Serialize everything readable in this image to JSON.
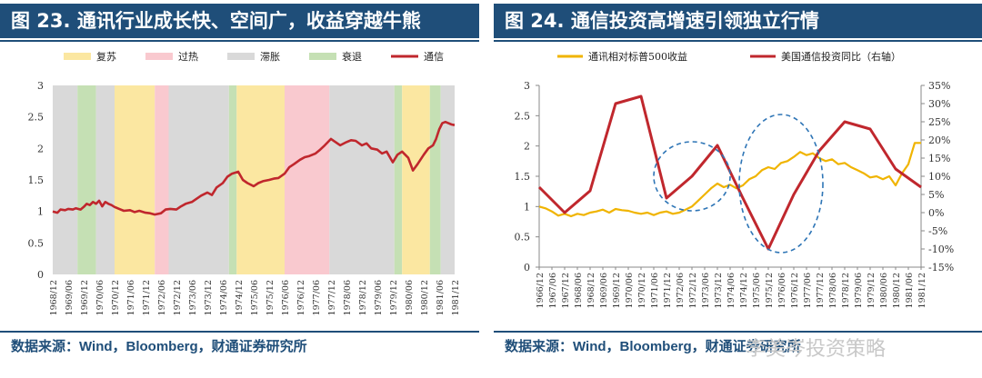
{
  "left": {
    "title": "图 23. 通讯行业成长快、空间广，收益穿越牛熊",
    "source": "数据来源：Wind，Bloomberg，财通证券研究所",
    "chart_data": {
      "type": "line",
      "title": "",
      "ylim": [
        0,
        3
      ],
      "yticks": [
        "0",
        "0.5",
        "1",
        "1.5",
        "2",
        "2.5",
        "3"
      ],
      "xticks": [
        "1968/12",
        "1969/06",
        "1969/12",
        "1970/06",
        "1970/12",
        "1971/06",
        "1971/12",
        "1972/06",
        "1972/12",
        "1973/06",
        "1973/12",
        "1974/06",
        "1974/12",
        "1975/06",
        "1975/12",
        "1976/06",
        "1976/12",
        "1977/06",
        "1977/12",
        "1978/06",
        "1978/12",
        "1979/06",
        "1979/12",
        "1980/06",
        "1980/12",
        "1981/06",
        "1981/12"
      ],
      "legend": [
        {
          "name": "复苏",
          "color": "#fbe7a1",
          "kind": "box"
        },
        {
          "name": "过热",
          "color": "#f9c9cf",
          "kind": "box"
        },
        {
          "name": "滞胀",
          "color": "#d9d9d9",
          "kind": "box"
        },
        {
          "name": "衰退",
          "color": "#c5e0b4",
          "kind": "box"
        },
        {
          "name": "通信",
          "color": "#c0272d",
          "kind": "line"
        }
      ],
      "phases": [
        {
          "phase": "滞胀",
          "from": 0,
          "to": 1.6
        },
        {
          "phase": "衰退",
          "from": 1.6,
          "to": 2.8
        },
        {
          "phase": "滞胀",
          "from": 2.8,
          "to": 4.0
        },
        {
          "phase": "复苏",
          "from": 4.0,
          "to": 6.6
        },
        {
          "phase": "过热",
          "from": 6.6,
          "to": 7.5
        },
        {
          "phase": "滞胀",
          "from": 7.5,
          "to": 11.4
        },
        {
          "phase": "衰退",
          "from": 11.4,
          "to": 11.9
        },
        {
          "phase": "复苏",
          "from": 11.9,
          "to": 15.0
        },
        {
          "phase": "过热",
          "from": 15.0,
          "to": 17.9
        },
        {
          "phase": "滞胀",
          "from": 17.9,
          "to": 22.1
        },
        {
          "phase": "衰退",
          "from": 22.1,
          "to": 22.6
        },
        {
          "phase": "复苏",
          "from": 22.6,
          "to": 24.4
        },
        {
          "phase": "衰退",
          "from": 24.4,
          "to": 25.1
        },
        {
          "phase": "滞胀",
          "from": 25.1,
          "to": 26.0
        }
      ],
      "series": [
        {
          "name": "通信",
          "color": "#c0272d",
          "x": [
            0,
            0.3,
            0.5,
            0.8,
            1,
            1.3,
            1.5,
            1.8,
            2,
            2.2,
            2.4,
            2.6,
            2.8,
            3,
            3.2,
            3.4,
            3.6,
            3.8,
            4,
            4.3,
            4.6,
            5,
            5.3,
            5.6,
            6,
            6.3,
            6.6,
            7,
            7.3,
            7.6,
            8,
            8.3,
            8.6,
            9,
            9.3,
            9.6,
            10,
            10.3,
            10.6,
            11,
            11.3,
            11.6,
            12,
            12.3,
            12.6,
            13,
            13.3,
            13.6,
            14,
            14.3,
            14.6,
            15,
            15.3,
            15.6,
            16,
            16.3,
            16.6,
            17,
            17.3,
            17.6,
            18,
            18.3,
            18.6,
            19,
            19.3,
            19.6,
            20,
            20.3,
            20.6,
            21,
            21.3,
            21.6,
            22,
            22.3,
            22.6,
            23,
            23.3,
            23.6,
            24,
            24.3,
            24.6,
            24.8,
            25,
            25.2,
            25.4,
            25.6,
            25.8,
            26
          ],
          "y": [
            1.0,
            0.98,
            1.03,
            1.02,
            1.04,
            1.03,
            1.05,
            1.03,
            1.07,
            1.12,
            1.1,
            1.15,
            1.12,
            1.17,
            1.08,
            1.15,
            1.12,
            1.1,
            1.07,
            1.04,
            1.01,
            1.02,
            0.99,
            1.01,
            0.98,
            0.97,
            0.95,
            0.97,
            1.03,
            1.04,
            1.03,
            1.08,
            1.12,
            1.15,
            1.2,
            1.25,
            1.3,
            1.26,
            1.38,
            1.45,
            1.55,
            1.6,
            1.63,
            1.5,
            1.45,
            1.4,
            1.45,
            1.48,
            1.5,
            1.52,
            1.53,
            1.6,
            1.7,
            1.75,
            1.82,
            1.86,
            1.88,
            1.92,
            1.98,
            2.05,
            2.15,
            2.1,
            2.05,
            2.1,
            2.13,
            2.12,
            2.05,
            2.08,
            2.0,
            1.98,
            1.92,
            1.95,
            1.78,
            1.9,
            1.95,
            1.85,
            1.65,
            1.75,
            1.9,
            2.0,
            2.05,
            2.15,
            2.3,
            2.4,
            2.42,
            2.4,
            2.38,
            2.37
          ]
        }
      ]
    }
  },
  "right": {
    "title": "图 24. 通信投资高增速引领独立行情",
    "source": "数据来源：Wind，Bloomberg，财通证券研究所",
    "watermark": "李美岑投资策略",
    "chart_data": {
      "type": "line",
      "title": "",
      "ylim": [
        0,
        3
      ],
      "ylim_right": [
        -15,
        35
      ],
      "yticks": [
        "0",
        "0.5",
        "1",
        "1.5",
        "2",
        "2.5",
        "3"
      ],
      "yticks_right": [
        "-15%",
        "-10%",
        "-5%",
        "0%",
        "5%",
        "10%",
        "15%",
        "20%",
        "25%",
        "30%",
        "35%"
      ],
      "xticks": [
        "1966/12",
        "1967/06",
        "1967/12",
        "1968/06",
        "1968/12",
        "1969/06",
        "1969/12",
        "1970/06",
        "1970/12",
        "1971/06",
        "1971/12",
        "1972/06",
        "1972/12",
        "1973/06",
        "1973/12",
        "1974/06",
        "1974/12",
        "1975/06",
        "1975/12",
        "1976/06",
        "1976/12",
        "1977/06",
        "1977/12",
        "1978/06",
        "1978/12",
        "1979/06",
        "1979/12",
        "1980/06",
        "1980/12",
        "1981/06",
        "1981/12"
      ],
      "legend": [
        {
          "name": "通讯相对标普500收益",
          "color": "#f0b400"
        },
        {
          "name": "美国通信投资同比（右轴）",
          "color": "#c0272d"
        }
      ],
      "series": [
        {
          "name": "通讯相对标普500收益",
          "axis": "left",
          "color": "#f0b400",
          "x": [
            0,
            0.5,
            1,
            1.5,
            2,
            2.5,
            3,
            3.5,
            4,
            4.5,
            5,
            5.5,
            6,
            6.5,
            7,
            7.5,
            8,
            8.5,
            9,
            9.5,
            10,
            10.5,
            11,
            11.5,
            12,
            12.5,
            13,
            13.5,
            14,
            14.5,
            15,
            15.5,
            16,
            16.5,
            17,
            17.5,
            18,
            18.5,
            19,
            19.5,
            20,
            20.5,
            21,
            21.5,
            22,
            22.5,
            23,
            23.5,
            24,
            24.5,
            25,
            25.5,
            26,
            26.5,
            27,
            27.5,
            28,
            28.5,
            29,
            29.5,
            30
          ],
          "y": [
            1.0,
            0.97,
            0.92,
            0.85,
            0.88,
            0.84,
            0.88,
            0.86,
            0.9,
            0.92,
            0.95,
            0.9,
            0.96,
            0.94,
            0.93,
            0.9,
            0.88,
            0.9,
            0.86,
            0.9,
            0.92,
            0.88,
            0.9,
            0.95,
            1.0,
            1.1,
            1.2,
            1.3,
            1.38,
            1.32,
            1.36,
            1.3,
            1.35,
            1.45,
            1.5,
            1.6,
            1.65,
            1.62,
            1.72,
            1.75,
            1.82,
            1.9,
            1.85,
            1.88,
            1.8,
            1.75,
            1.78,
            1.7,
            1.72,
            1.65,
            1.6,
            1.55,
            1.48,
            1.5,
            1.45,
            1.5,
            1.35,
            1.55,
            1.7,
            2.05,
            2.05
          ]
        },
        {
          "name": "美国通信投资同比（右轴）",
          "axis": "right",
          "color": "#c0272d",
          "x": [
            0,
            2,
            4,
            6,
            8,
            10,
            12,
            14,
            16,
            18,
            20,
            22,
            24,
            26,
            28,
            30
          ],
          "y": [
            7,
            0,
            6,
            30,
            32,
            4,
            10,
            18.5,
            4,
            -10,
            5,
            17,
            25,
            23,
            12,
            7
          ]
        }
      ],
      "annotations": [
        {
          "shape": "dashed-ellipse",
          "center_x": 12,
          "center_y_right": 10,
          "note": ""
        },
        {
          "shape": "dashed-ellipse",
          "center_x": 19,
          "center_y_right": 8,
          "note": ""
        }
      ]
    }
  }
}
